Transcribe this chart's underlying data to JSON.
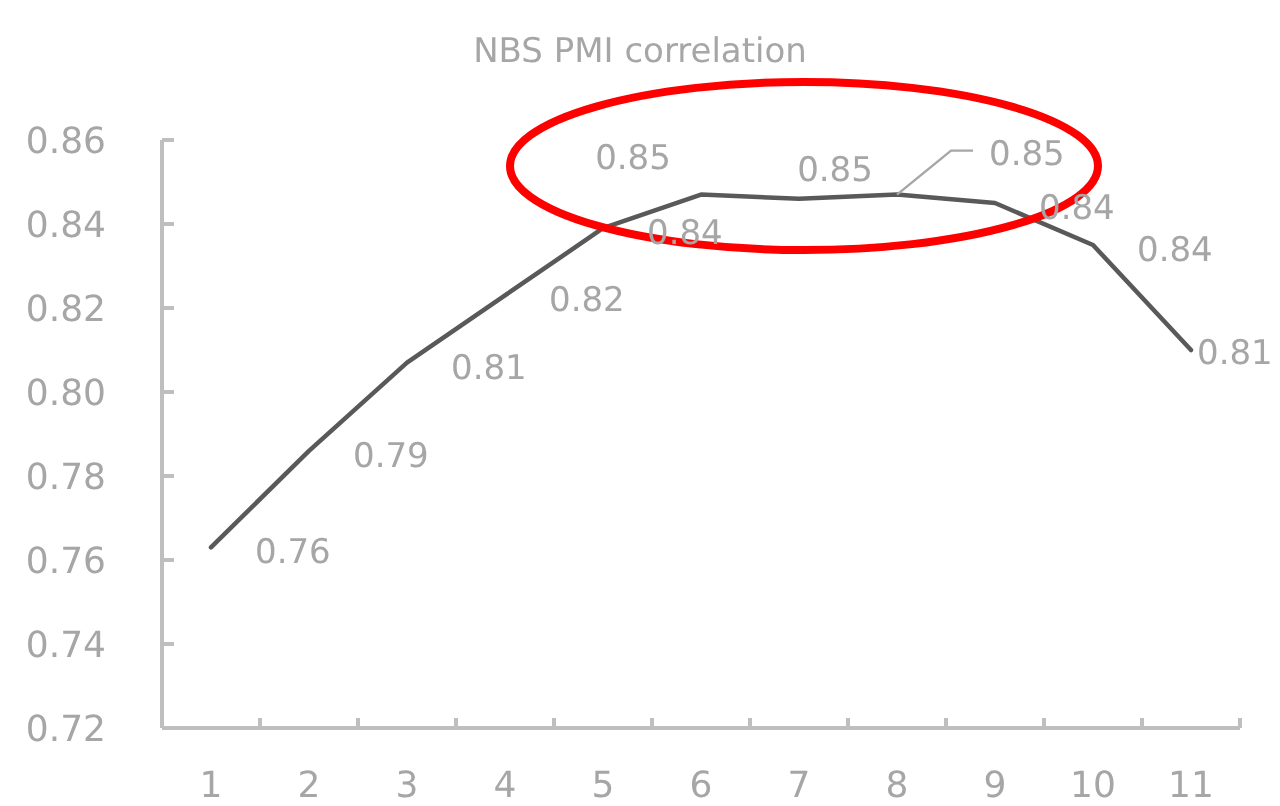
{
  "chart_data": {
    "type": "line",
    "title": "NBS PMI correlation",
    "categories": [
      "1",
      "2",
      "3",
      "4",
      "5",
      "6",
      "7",
      "8",
      "9",
      "10",
      "11"
    ],
    "values": [
      0.763,
      0.786,
      0.807,
      0.823,
      0.839,
      0.847,
      0.846,
      0.847,
      0.845,
      0.835,
      0.81
    ],
    "color": "#595959",
    "value_labels": [
      "0.76",
      "0.79",
      "0.81",
      "0.82",
      "0.84",
      "0.85",
      "0.85",
      "0.85",
      "0.84",
      "0.84",
      "0.81"
    ],
    "ylim": [
      0.72,
      0.86
    ],
    "yticks": [
      0.72,
      0.74,
      0.76,
      0.78,
      {
        "value": 0.8,
        "label": "0.80"
      },
      0.82,
      0.84,
      0.86
    ]
  }
}
